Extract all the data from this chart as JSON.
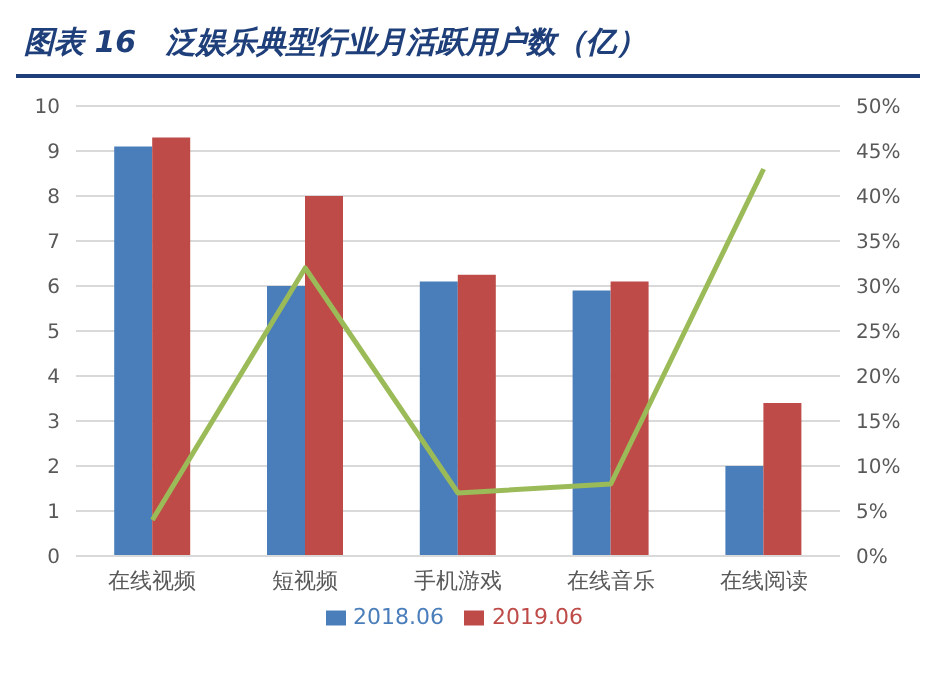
{
  "chart_data": {
    "type": "bar",
    "title": "图表 16　泛娱乐典型行业月活跃用户数（亿）",
    "categories": [
      "在线视频",
      "短视频",
      "手机游戏",
      "在线音乐",
      "在线阅读"
    ],
    "series": [
      {
        "name": "2018.06",
        "color": "#4a7ebb",
        "values": [
          9.1,
          6.0,
          6.1,
          5.9,
          2.0
        ]
      },
      {
        "name": "2019.06",
        "color": "#be4b48",
        "values": [
          9.3,
          8.0,
          6.25,
          6.1,
          3.4
        ]
      },
      {
        "type": "line",
        "axis": "y2",
        "color": "#9bbb59",
        "values": [
          4,
          32,
          7,
          8,
          43
        ]
      }
    ],
    "ylim": [
      0,
      10
    ],
    "yticks": [
      0,
      1,
      2,
      3,
      4,
      5,
      6,
      7,
      8,
      9,
      10
    ],
    "y2lim": [
      0,
      50
    ],
    "y2ticks": [
      {
        "value": 0,
        "label": "0%"
      },
      {
        "value": 5,
        "label": "5%"
      },
      {
        "value": 10,
        "label": "10%"
      },
      {
        "value": 15,
        "label": "15%"
      },
      {
        "value": 20,
        "label": "20%"
      },
      {
        "value": 25,
        "label": "25%"
      },
      {
        "value": 30,
        "label": "30%"
      },
      {
        "value": 35,
        "label": "35%"
      },
      {
        "value": 40,
        "label": "40%"
      },
      {
        "value": 45,
        "label": "45%"
      },
      {
        "value": 50,
        "label": "50%"
      }
    ],
    "grid": "y",
    "legend": "bottom",
    "marker": "none"
  }
}
